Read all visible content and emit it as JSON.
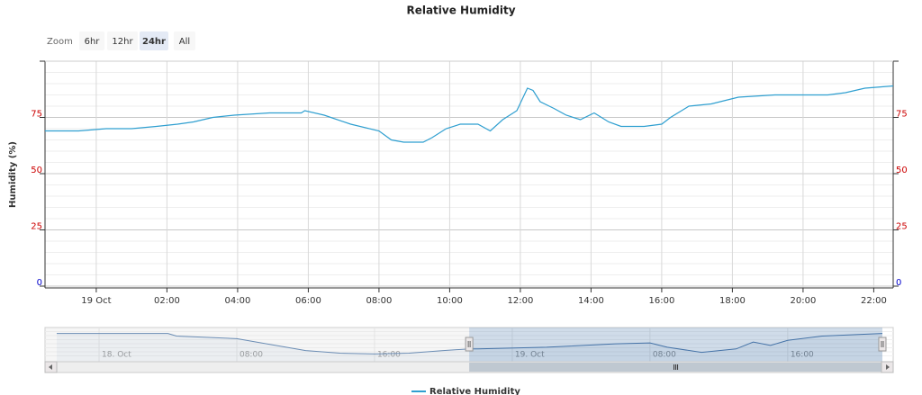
{
  "chart_data": {
    "type": "line",
    "title": "Relative Humidity",
    "range_selector": {
      "label": "Zoom",
      "buttons": [
        "6hr",
        "12hr",
        "24hr",
        "All"
      ],
      "selected": 2
    },
    "y_axis_title": "Humidity (%)",
    "x": [
      -1.45,
      -0.5,
      0.28,
      1.0,
      1.7,
      2.3,
      2.75,
      3.3,
      3.9,
      4.9,
      5.8,
      5.9,
      6.45,
      7.2,
      8.0,
      8.35,
      8.7,
      9.25,
      9.5,
      9.9,
      10.3,
      10.8,
      11.15,
      11.5,
      11.9,
      12.2,
      12.36,
      12.56,
      12.95,
      13.3,
      13.7,
      14.09,
      14.5,
      14.85,
      15.5,
      16.0,
      16.25,
      16.77,
      17.4,
      18.17,
      19.2,
      20.7,
      21.2,
      21.75,
      22.55
    ],
    "series": [
      {
        "name": "Relative Humidity",
        "color": "#2f9fd0",
        "values": [
          69,
          69,
          70,
          70,
          71,
          72,
          73,
          75,
          76,
          77,
          77,
          78,
          76,
          72,
          69,
          65,
          64,
          64,
          66,
          70,
          72,
          72,
          69,
          74,
          78,
          88,
          87,
          82,
          79,
          76,
          74,
          77,
          73,
          71,
          71,
          72,
          75,
          80,
          81,
          84,
          85,
          85,
          86,
          88,
          89
        ]
      }
    ],
    "xlim": [
      -1.45,
      22.55
    ],
    "xticks": [
      {
        "value": 0,
        "label": "19 Oct"
      },
      {
        "value": 2,
        "label": "02:00"
      },
      {
        "value": 4,
        "label": "04:00"
      },
      {
        "value": 6,
        "label": "06:00"
      },
      {
        "value": 8,
        "label": "08:00"
      },
      {
        "value": 10,
        "label": "10:00"
      },
      {
        "value": 12,
        "label": "12:00"
      },
      {
        "value": 14,
        "label": "14:00"
      },
      {
        "value": 16,
        "label": "16:00"
      },
      {
        "value": 18,
        "label": "18:00"
      },
      {
        "value": 20,
        "label": "20:00"
      },
      {
        "value": 22,
        "label": "22:00"
      }
    ],
    "ylim": [
      0,
      100
    ],
    "yticks": [
      0,
      25,
      50,
      75
    ],
    "minor_tick_interval": 5,
    "grid": true,
    "ytick_color": "#cc0000",
    "zero_tick_color": "#0000cc",
    "opposite_axis": true,
    "legend": "bottom",
    "navigator": {
      "color": "#4572a7",
      "x": [
        -2.46,
        2,
        4,
        4.5,
        8,
        10,
        12,
        14,
        16,
        18,
        20,
        21.5,
        22,
        26,
        30,
        32,
        33,
        35,
        37,
        38,
        39,
        40,
        42,
        45.5
      ],
      "values": [
        88,
        88,
        88,
        85,
        82,
        75,
        68,
        65,
        64,
        65,
        68,
        70,
        70,
        72,
        76,
        77,
        72,
        66,
        70,
        78,
        74,
        80,
        85,
        88
      ],
      "xlim": [
        -2.46,
        45.5
      ],
      "ylim": [
        55,
        95
      ],
      "xticks": [
        {
          "value": 0,
          "label": "18. Oct"
        },
        {
          "value": 8,
          "label": "08:00"
        },
        {
          "value": 16,
          "label": "16:00"
        },
        {
          "value": 24,
          "label": "19. Oct"
        },
        {
          "value": 32,
          "label": "08:00"
        },
        {
          "value": 40,
          "label": "16:00"
        }
      ],
      "selection": [
        21.5,
        45.5
      ]
    }
  }
}
